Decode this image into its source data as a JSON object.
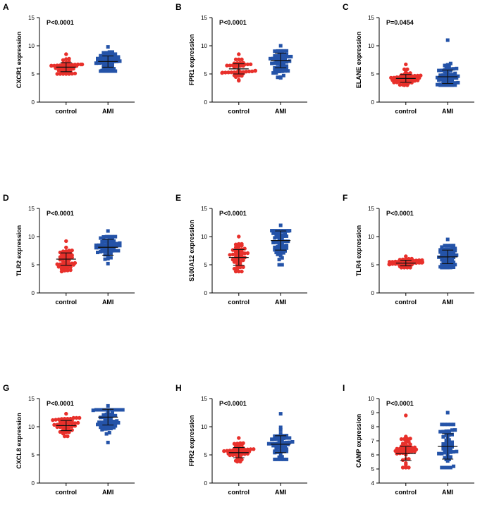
{
  "colors": {
    "control": "#e8302b",
    "ami": "#2453a8",
    "axis": "#000000"
  },
  "chart_data": [
    {
      "type": "scatter",
      "letter": "A",
      "title": "",
      "ylabel": "CXCR1 expression",
      "pvalue": "P<0.0001",
      "categories": [
        "control",
        "AMI"
      ],
      "ylim": [
        0,
        15
      ],
      "yticks": [
        0,
        5,
        10,
        15
      ],
      "series": [
        {
          "name": "control",
          "mean": 6.2,
          "sd": 0.8,
          "min": 5.0,
          "max": 8.5,
          "n": 45
        },
        {
          "name": "AMI",
          "mean": 7.2,
          "sd": 1.0,
          "min": 5.5,
          "max": 9.8,
          "n": 55
        }
      ]
    },
    {
      "type": "scatter",
      "letter": "B",
      "title": "",
      "ylabel": "FPR1 expression",
      "pvalue": "P<0.0001",
      "categories": [
        "control",
        "AMI"
      ],
      "ylim": [
        0,
        15
      ],
      "yticks": [
        0,
        5,
        10,
        15
      ],
      "series": [
        {
          "name": "control",
          "mean": 5.9,
          "sd": 0.9,
          "min": 3.8,
          "max": 8.5,
          "n": 45
        },
        {
          "name": "AMI",
          "mean": 7.4,
          "sd": 1.3,
          "min": 4.3,
          "max": 10.0,
          "n": 55
        }
      ]
    },
    {
      "type": "scatter",
      "letter": "C",
      "title": "",
      "ylabel": "ELANE expression",
      "pvalue": "P=0.0454",
      "categories": [
        "control",
        "AMI"
      ],
      "ylim": [
        0,
        15
      ],
      "yticks": [
        0,
        5,
        10,
        15
      ],
      "series": [
        {
          "name": "control",
          "mean": 4.2,
          "sd": 0.7,
          "min": 3.0,
          "max": 6.7,
          "n": 45
        },
        {
          "name": "AMI",
          "mean": 4.5,
          "sd": 1.2,
          "min": 3.0,
          "max": 11.0,
          "n": 55
        }
      ]
    },
    {
      "type": "scatter",
      "letter": "D",
      "title": "",
      "ylabel": "TLR2 expression",
      "pvalue": "P<0.0001",
      "categories": [
        "control",
        "AMI"
      ],
      "ylim": [
        0,
        15
      ],
      "yticks": [
        0,
        5,
        10,
        15
      ],
      "series": [
        {
          "name": "control",
          "mean": 6.0,
          "sd": 1.1,
          "min": 3.8,
          "max": 9.2,
          "n": 45
        },
        {
          "name": "AMI",
          "mean": 8.1,
          "sd": 1.4,
          "min": 5.2,
          "max": 11.0,
          "n": 55
        }
      ]
    },
    {
      "type": "scatter",
      "letter": "E",
      "title": "",
      "ylabel": "S100A12 expression",
      "pvalue": "P<0.0001",
      "categories": [
        "control",
        "AMI"
      ],
      "ylim": [
        0,
        15
      ],
      "yticks": [
        0,
        5,
        10,
        15
      ],
      "series": [
        {
          "name": "control",
          "mean": 6.3,
          "sd": 1.4,
          "min": 3.8,
          "max": 10.0,
          "n": 45
        },
        {
          "name": "AMI",
          "mean": 9.3,
          "sd": 1.7,
          "min": 5.0,
          "max": 12.0,
          "n": 55
        }
      ]
    },
    {
      "type": "scatter",
      "letter": "F",
      "title": "",
      "ylabel": "TLR4 expression",
      "pvalue": "P<0.0001",
      "categories": [
        "control",
        "AMI"
      ],
      "ylim": [
        0,
        15
      ],
      "yticks": [
        0,
        5,
        10,
        15
      ],
      "series": [
        {
          "name": "control",
          "mean": 5.3,
          "sd": 0.5,
          "min": 4.5,
          "max": 6.5,
          "n": 45
        },
        {
          "name": "AMI",
          "mean": 6.4,
          "sd": 1.2,
          "min": 4.5,
          "max": 9.5,
          "n": 55
        }
      ]
    },
    {
      "type": "scatter",
      "letter": "G",
      "title": "",
      "ylabel": "CXCL8 expression",
      "pvalue": "P<0.0001",
      "categories": [
        "control",
        "AMI"
      ],
      "ylim": [
        0,
        15
      ],
      "yticks": [
        0,
        5,
        10,
        15
      ],
      "series": [
        {
          "name": "control",
          "mean": 10.2,
          "sd": 0.9,
          "min": 8.3,
          "max": 12.3,
          "n": 45
        },
        {
          "name": "AMI",
          "mean": 11.7,
          "sd": 1.4,
          "min": 7.2,
          "max": 13.7,
          "n": 55
        }
      ]
    },
    {
      "type": "scatter",
      "letter": "H",
      "title": "",
      "ylabel": "FPR2 expression",
      "pvalue": "P<0.0001",
      "categories": [
        "control",
        "AMI"
      ],
      "ylim": [
        0,
        15
      ],
      "yticks": [
        0,
        5,
        10,
        15
      ],
      "series": [
        {
          "name": "control",
          "mean": 5.4,
          "sd": 0.9,
          "min": 3.8,
          "max": 8.0,
          "n": 45
        },
        {
          "name": "AMI",
          "mean": 6.9,
          "sd": 1.5,
          "min": 4.2,
          "max": 12.3,
          "n": 55
        }
      ]
    },
    {
      "type": "scatter",
      "letter": "I",
      "title": "",
      "ylabel": "CAMP expression",
      "pvalue": "P<0.0001",
      "categories": [
        "control",
        "AMI"
      ],
      "ylim": [
        4,
        10
      ],
      "yticks": [
        4,
        5,
        6,
        7,
        8,
        9,
        10
      ],
      "series": [
        {
          "name": "control",
          "mean": 6.1,
          "sd": 0.5,
          "min": 5.1,
          "max": 8.8,
          "n": 45
        },
        {
          "name": "AMI",
          "mean": 6.6,
          "sd": 0.9,
          "min": 5.1,
          "max": 9.0,
          "n": 55
        }
      ]
    }
  ]
}
